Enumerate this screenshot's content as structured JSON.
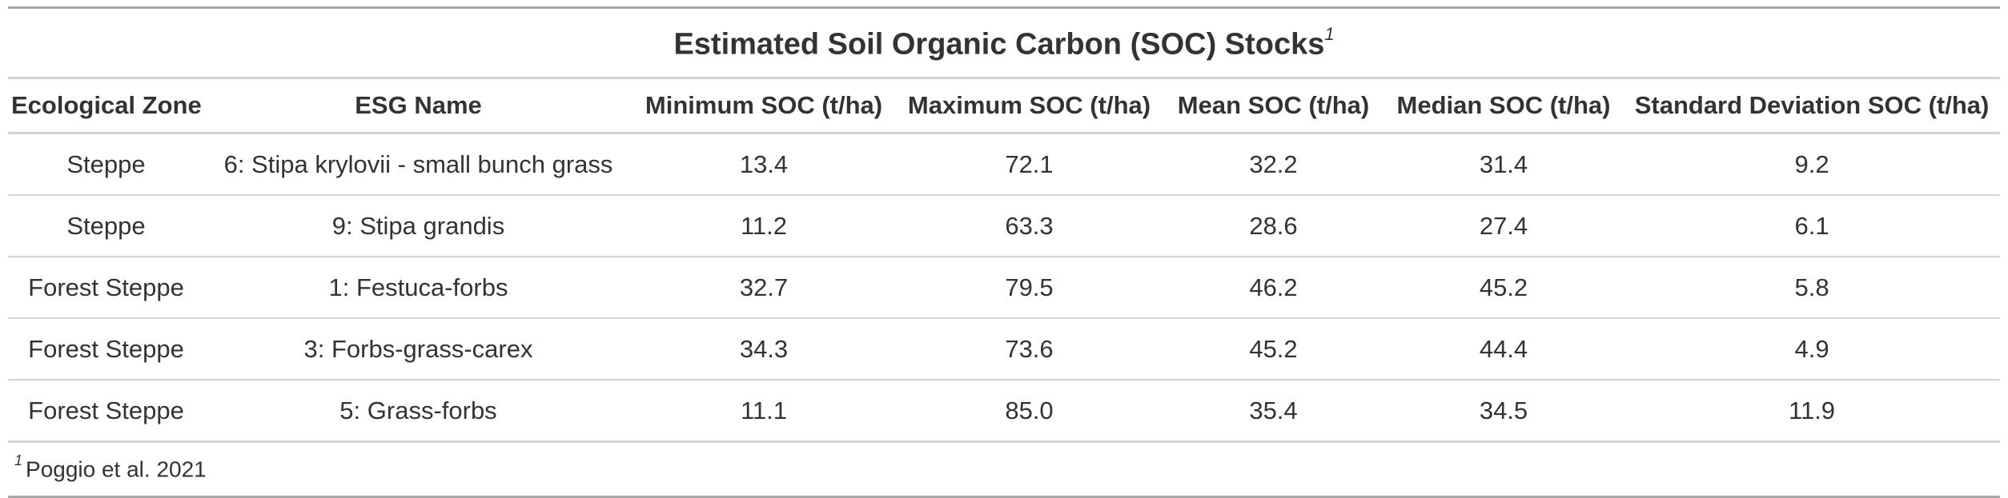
{
  "table": {
    "title": "Estimated Soil Organic Carbon (SOC) Stocks",
    "title_footnote_marker": "1",
    "columns": [
      "Ecological Zone",
      "ESG Name",
      "Minimum SOC (t/ha)",
      "Maximum SOC (t/ha)",
      "Mean SOC (t/ha)",
      "Median SOC (t/ha)",
      "Standard Deviation SOC (t/ha)"
    ],
    "rows": [
      [
        "Steppe",
        "6: Stipa krylovii - small bunch grass",
        "13.4",
        "72.1",
        "32.2",
        "31.4",
        "9.2"
      ],
      [
        "Steppe",
        "9: Stipa grandis",
        "11.2",
        "63.3",
        "28.6",
        "27.4",
        "6.1"
      ],
      [
        "Forest Steppe",
        "1: Festuca-forbs",
        "32.7",
        "79.5",
        "46.2",
        "45.2",
        "5.8"
      ],
      [
        "Forest Steppe",
        "3: Forbs-grass-carex",
        "34.3",
        "73.6",
        "45.2",
        "44.4",
        "4.9"
      ],
      [
        "Forest Steppe",
        "5: Grass-forbs",
        "11.1",
        "85.0",
        "35.4",
        "34.5",
        "11.9"
      ]
    ],
    "footnote_marker": "1",
    "footnote": "Poggio et al. 2021"
  }
}
